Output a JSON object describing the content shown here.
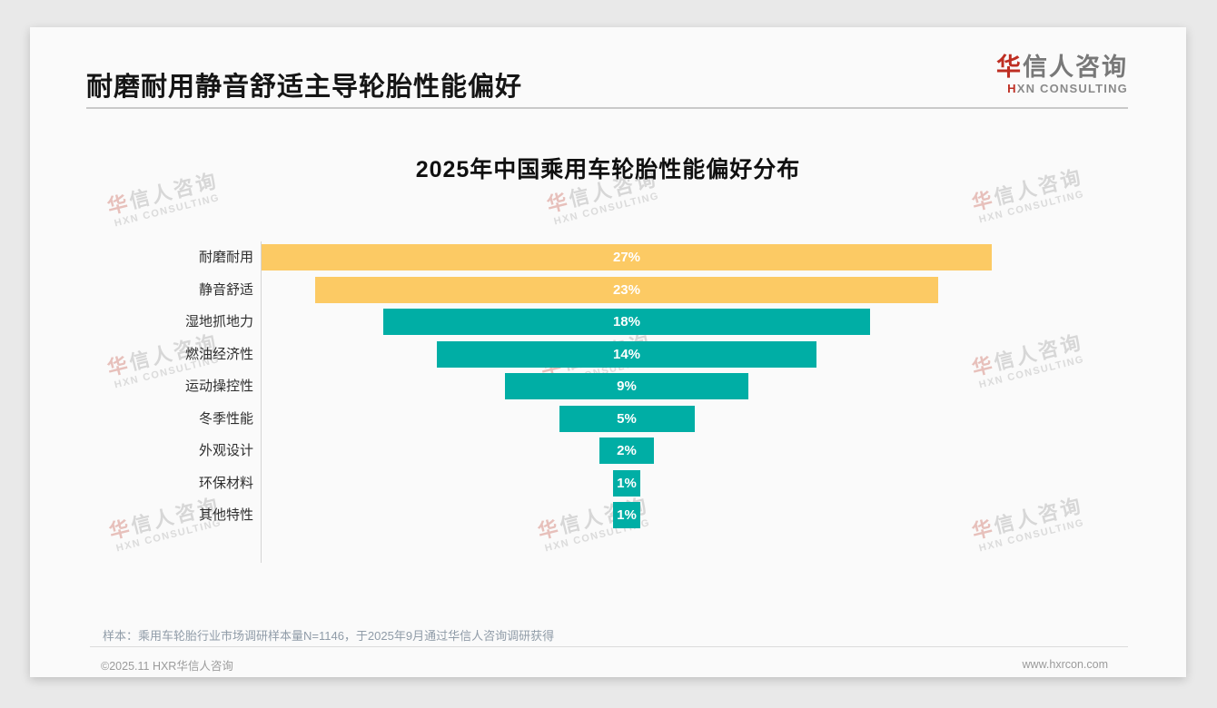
{
  "header": {
    "title": "耐磨耐用静音舒适主导轮胎性能偏好"
  },
  "logo": {
    "cn_first": "华",
    "cn_rest": "信人咨询",
    "en_first": "H",
    "en_rest": "XN CONSULTING"
  },
  "chart_data": {
    "type": "bar",
    "orientation": "horizontal-centered-funnel",
    "title": "2025年中国乘用车轮胎性能偏好分布",
    "categories": [
      "耐磨耐用",
      "静音舒适",
      "湿地抓地力",
      "燃油经济性",
      "运动操控性",
      "冬季性能",
      "外观设计",
      "环保材料",
      "其他特性"
    ],
    "values": [
      27,
      23,
      18,
      14,
      9,
      5,
      2,
      1,
      1
    ],
    "value_labels": [
      "27%",
      "23%",
      "18%",
      "14%",
      "9%",
      "5%",
      "2%",
      "1%",
      "1%"
    ],
    "bar_colors": [
      "#fcca64",
      "#fcca64",
      "#00aea5",
      "#00aea5",
      "#00aea5",
      "#00aea5",
      "#00aea5",
      "#00aea5",
      "#00aea5"
    ],
    "unit": "%",
    "xlim": [
      0,
      27
    ],
    "grid": false,
    "legend": false
  },
  "watermark": {
    "cn_first": "华",
    "cn_rest": "信人咨询",
    "en": "HXN CONSULTING"
  },
  "footnote": "样本：乘用车轮胎行业市场调研样本量N=1146，于2025年9月通过华信人咨询调研获得",
  "footer": {
    "left": "©2025.11 HXR华信人咨询",
    "right": "www.hxrcon.com"
  },
  "colors": {
    "accent_red": "#be2e22",
    "bar_yellow": "#fcca64",
    "bar_teal": "#00aea5",
    "card_bg": "#fafafa",
    "page_bg": "#e9e9e9"
  }
}
